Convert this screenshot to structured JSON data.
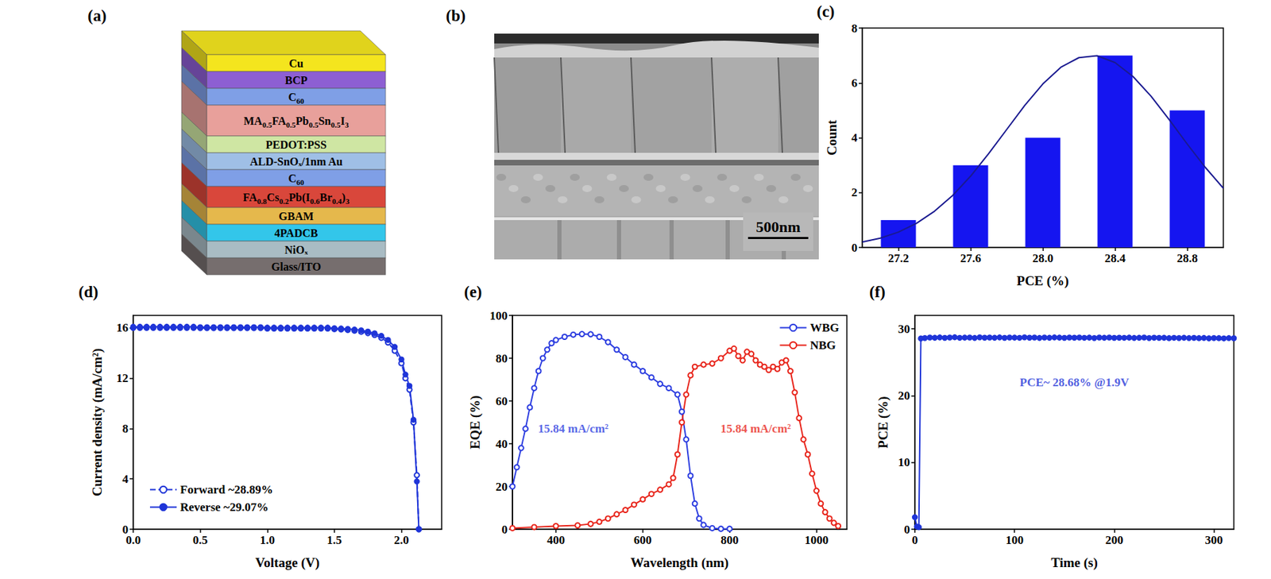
{
  "diagram": {
    "label": "(a)",
    "layers": [
      {
        "text": "Cu",
        "color": "#f4e51e"
      },
      {
        "text": "BCP",
        "color": "#8d5fd3"
      },
      {
        "text": "C60",
        "color": "#7f9fe6"
      },
      {
        "text": "MA0.5FA0.5Pb0.5Sn0.5I3",
        "color": "#e8a09b"
      },
      {
        "text": "PEDOT:PSS",
        "color": "#cfe6a3"
      },
      {
        "text": "ALD-SnOₓ/1nm Au",
        "color": "#9fbfe6"
      },
      {
        "text": "C60",
        "color": "#7f9fe6"
      },
      {
        "text": "FA0.8Cs0.2Pb(I0.6Br0.4)3",
        "color": "#d9473b"
      },
      {
        "text": "GBAM",
        "color": "#e5b84c"
      },
      {
        "text": "4PADCB",
        "color": "#33c6ea"
      },
      {
        "text": "NiOₓ",
        "color": "#a9bcc4"
      },
      {
        "text": "Glass/ITO",
        "color": "#766e6e"
      }
    ]
  },
  "image": {
    "label": "(b)",
    "scale_bar": "500nm"
  },
  "chart_data": [
    {
      "label": "(c)",
      "type": "bar",
      "xlabel": "PCE (%)",
      "ylabel": "Count",
      "xlim": [
        27.0,
        29.0
      ],
      "xticks": [
        27.2,
        27.6,
        {
          "value": 28.0,
          "label": "28.0"
        },
        28.4,
        28.8
      ],
      "ylim": [
        0,
        8
      ],
      "yticks": [
        0,
        2,
        4,
        6,
        8
      ],
      "grid": false,
      "series": [
        {
          "type": "bar",
          "color": "#1515f0",
          "x": [
            27.2,
            27.6,
            28.0,
            28.4,
            28.8
          ],
          "values": [
            1,
            3,
            4,
            7,
            5
          ]
        },
        {
          "type": "line",
          "color": "#1a1a90",
          "marker": "none",
          "line_style": "solid",
          "x": [
            27.0,
            27.1,
            27.2,
            27.3,
            27.4,
            27.5,
            27.6,
            27.7,
            27.8,
            27.9,
            28.0,
            28.1,
            28.2,
            28.3,
            28.4,
            28.5,
            28.6,
            28.7,
            28.8,
            28.9,
            29.0
          ],
          "values": [
            0.2,
            0.34,
            0.56,
            0.88,
            1.32,
            1.89,
            2.6,
            3.42,
            4.3,
            5.18,
            5.96,
            6.57,
            6.92,
            6.99,
            6.74,
            6.23,
            5.51,
            4.66,
            3.77,
            2.92,
            2.16
          ]
        }
      ]
    },
    {
      "label": "(d)",
      "type": "line",
      "xlabel": "Voltage (V)",
      "ylabel": "Current density (mA/cm²)",
      "xlim": [
        0,
        2.3
      ],
      "xticks": [
        {
          "value": 0,
          "label": "0.0"
        },
        0.5,
        {
          "value": 1,
          "label": "1.0"
        },
        1.5,
        {
          "value": 2,
          "label": "2.0"
        }
      ],
      "ylim": [
        0,
        17
      ],
      "yticks": [
        0,
        4,
        8,
        12,
        16
      ],
      "grid": false,
      "legend": "lower left",
      "x": [
        0,
        0.05,
        0.1,
        0.15,
        0.2,
        0.25,
        0.3,
        0.35,
        0.4,
        0.45,
        0.5,
        0.55,
        0.6,
        0.65,
        0.7,
        0.75,
        0.8,
        0.85,
        0.9,
        0.95,
        1.0,
        1.05,
        1.1,
        1.15,
        1.2,
        1.25,
        1.3,
        1.35,
        1.4,
        1.45,
        1.5,
        1.55,
        1.6,
        1.65,
        1.7,
        1.75,
        1.8,
        1.85,
        1.9,
        1.95,
        2.0,
        2.03,
        2.06,
        2.09,
        2.115,
        2.13
      ],
      "series": [
        {
          "name": "Forward ~28.89%",
          "color": "#1f35d8",
          "marker": "open_circle",
          "line_style": "dashed",
          "values": [
            16.02,
            16.02,
            16.02,
            16.02,
            16.02,
            16.02,
            16.02,
            16.02,
            16.02,
            16.02,
            16.0,
            16.0,
            16.0,
            16.0,
            16.0,
            16.0,
            16.0,
            16.0,
            16.0,
            16.0,
            15.97,
            15.97,
            15.97,
            15.97,
            15.97,
            15.97,
            15.97,
            15.97,
            15.97,
            15.97,
            15.92,
            15.89,
            15.85,
            15.79,
            15.71,
            15.6,
            15.45,
            15.22,
            14.85,
            14.2,
            13.2,
            12.0,
            11.1,
            8.5,
            4.3,
            0.0
          ]
        },
        {
          "name": "Reverse ~29.07%",
          "color": "#1f35d8",
          "marker": "circle",
          "line_style": "solid",
          "values": [
            16.1,
            16.1,
            16.1,
            16.1,
            16.1,
            16.1,
            16.1,
            16.1,
            16.1,
            16.1,
            16.07,
            16.07,
            16.07,
            16.07,
            16.07,
            16.07,
            16.07,
            16.07,
            16.07,
            16.07,
            16.03,
            16.03,
            16.03,
            16.03,
            16.03,
            16.03,
            16.03,
            16.03,
            16.03,
            16.03,
            15.98,
            15.96,
            15.93,
            15.88,
            15.82,
            15.72,
            15.58,
            15.38,
            15.05,
            14.5,
            13.5,
            12.3,
            11.4,
            8.7,
            3.8,
            0.0
          ]
        }
      ]
    },
    {
      "label": "(e)",
      "type": "line",
      "xlabel": "Wavelength (nm)",
      "ylabel": "EQE (%)",
      "xlim": [
        300,
        1070
      ],
      "xticks": [
        400,
        600,
        800,
        1000
      ],
      "ylim": [
        0,
        100
      ],
      "yticks": [
        0,
        20,
        40,
        60,
        80,
        100
      ],
      "grid": false,
      "legend": "upper right",
      "series": [
        {
          "name": "WBG",
          "color": "#2d3ee0",
          "marker": "open_circle",
          "line_style": "solid",
          "x": [
            300,
            310,
            320,
            330,
            340,
            350,
            360,
            370,
            380,
            390,
            400,
            420,
            440,
            460,
            480,
            500,
            520,
            540,
            560,
            580,
            600,
            620,
            640,
            660,
            680,
            690,
            700,
            710,
            720,
            730,
            740,
            760,
            780,
            800
          ],
          "values": [
            20,
            29,
            38,
            47,
            57,
            66,
            74,
            80,
            84,
            87,
            88.5,
            90,
            91,
            91.3,
            91.2,
            90,
            87.5,
            84,
            80.5,
            77,
            74,
            71,
            68,
            66,
            63,
            55,
            42,
            25,
            12,
            5,
            2,
            0.5,
            0.2,
            0.2
          ]
        },
        {
          "name": "NBG",
          "color": "#e8261c",
          "marker": "open_circle",
          "line_style": "solid",
          "x": [
            300,
            350,
            400,
            450,
            480,
            500,
            520,
            540,
            560,
            580,
            600,
            620,
            640,
            660,
            670,
            680,
            690,
            700,
            710,
            720,
            740,
            760,
            780,
            800,
            810,
            820,
            830,
            840,
            850,
            860,
            870,
            880,
            890,
            900,
            910,
            920,
            930,
            940,
            950,
            960,
            970,
            980,
            990,
            1000,
            1010,
            1020,
            1030,
            1040,
            1050
          ],
          "values": [
            0.5,
            1,
            1.5,
            1.8,
            2.5,
            3.5,
            5,
            7,
            9,
            11.5,
            14,
            16.5,
            18.5,
            21,
            24,
            35,
            50,
            63,
            72,
            76,
            77,
            77.5,
            80,
            83.5,
            84.5,
            81,
            79,
            83,
            82,
            79,
            77,
            76,
            74.5,
            76,
            75,
            78,
            79,
            74,
            64,
            52,
            42,
            35,
            26,
            18,
            12,
            8,
            5,
            3,
            1.5
          ]
        }
      ],
      "annotations": [
        {
          "text": "15.84 mA/cm²",
          "x": 440,
          "y": 47,
          "color": "#2d3ee0"
        },
        {
          "text": "15.84 mA/cm²",
          "x": 860,
          "y": 47,
          "color": "#e8261c"
        }
      ]
    },
    {
      "label": "(f)",
      "type": "line",
      "xlabel": "Time (s)",
      "ylabel": "PCE (%)",
      "xlim": [
        0,
        320
      ],
      "xticks": [
        0,
        100,
        200,
        300
      ],
      "ylim": [
        0,
        32
      ],
      "yticks": [
        0,
        10,
        20,
        30
      ],
      "grid": false,
      "series": [
        {
          "color": "#1f35d8",
          "marker": "circle",
          "line_style": "solid",
          "x": [
            0,
            2,
            4,
            6,
            10,
            15,
            20,
            25,
            30,
            35,
            40,
            45,
            50,
            55,
            60,
            65,
            70,
            75,
            80,
            85,
            90,
            95,
            100,
            105,
            110,
            115,
            120,
            125,
            130,
            135,
            140,
            145,
            150,
            155,
            160,
            165,
            170,
            175,
            180,
            185,
            190,
            195,
            200,
            205,
            210,
            215,
            220,
            225,
            230,
            235,
            240,
            245,
            250,
            255,
            260,
            265,
            270,
            275,
            280,
            285,
            290,
            295,
            300,
            305,
            310,
            315,
            320
          ],
          "values": [
            1.8,
            0.4,
            0.3,
            28.55,
            28.62,
            28.7,
            28.66,
            28.71,
            28.64,
            28.69,
            28.73,
            28.65,
            28.68,
            28.7,
            28.63,
            28.72,
            28.67,
            28.69,
            28.66,
            28.71,
            28.64,
            28.7,
            28.68,
            28.65,
            28.72,
            28.67,
            28.69,
            28.63,
            28.7,
            28.66,
            28.71,
            28.68,
            28.64,
            28.69,
            28.67,
            28.7,
            28.65,
            28.68,
            28.62,
            28.69,
            28.66,
            28.7,
            28.64,
            28.67,
            28.65,
            28.68,
            28.63,
            28.66,
            28.69,
            28.62,
            28.67,
            28.64,
            28.66,
            28.6,
            28.65,
            28.62,
            28.66,
            28.61,
            28.64,
            28.6,
            28.63,
            28.58,
            28.62,
            28.6,
            28.57,
            28.61,
            28.59
          ]
        }
      ],
      "annotations": [
        {
          "text": "PCE~ 28.68% @1.9V",
          "x": 160,
          "y": 22,
          "color": "#1f35d8"
        }
      ]
    }
  ]
}
